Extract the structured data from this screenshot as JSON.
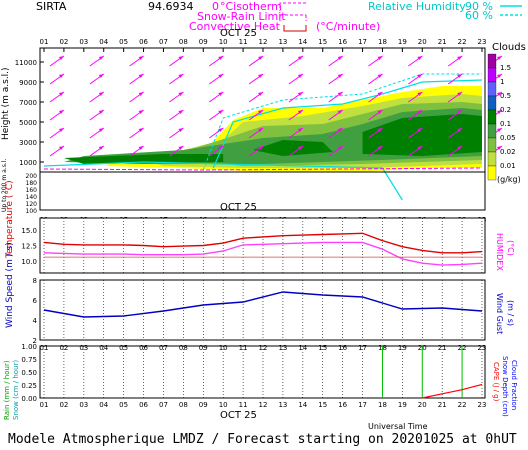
{
  "header": {
    "station": "SIRTA",
    "station_code": "94.6934",
    "legend_isotherm_prefix": "0",
    "legend_isotherm": "°Cisotherm",
    "legend_snow": "Snow-Rain Limit",
    "legend_conv": "Convective Heat",
    "legend_conv_units": "(°C/minute)",
    "legend_rh_label": "Relative Humidity",
    "legend_rh_90": "90 %",
    "legend_rh_60": "60 %",
    "colors": {
      "isotherm": "#ff00ff",
      "snow": "#ff00ff",
      "conv": "#e60000",
      "rh": "#00e0e0"
    }
  },
  "footer": {
    "text": "Modele Atmospherique LMDZ / Forecast starting on 20201025 at 0hUT",
    "universal_time": "Universal Time"
  },
  "hours_top": [
    "01",
    "02",
    "03",
    "04",
    "05",
    "06",
    "07",
    "08",
    "09",
    "10",
    "11",
    "12",
    "13",
    "14",
    "15",
    "16",
    "17",
    "18",
    "19",
    "20",
    "21",
    "22",
    "23"
  ],
  "hours_mid": [
    "01",
    "02",
    "03",
    "04",
    "05",
    "06",
    "07",
    "08",
    "09",
    "10",
    "11",
    "12",
    "13",
    "14",
    "15",
    "16",
    "17",
    "18",
    "19",
    "20",
    "21",
    "22",
    "23"
  ],
  "date_label": "OCT 25",
  "clouds": {
    "title": "Clouds",
    "units": "(g/kg)",
    "levels": [
      "1.5",
      "1",
      "0.5",
      "0.2",
      "0.1",
      "0.05",
      "0.02",
      "0.01"
    ],
    "colors": [
      "#a000a0",
      "#c000ff",
      "#6060ff",
      "#1060c0",
      "#008000",
      "#40a040",
      "#80c040",
      "#c0e040",
      "#ffff00"
    ],
    "ylabel": "Height (m a.s.l.)",
    "yticks_km": [
      "11000",
      "9000",
      "7000",
      "5000",
      "3000",
      "1000"
    ],
    "yticks_low": [
      "200",
      "180",
      "160",
      "140",
      "120",
      "100"
    ],
    "low_label": "Up to 200 m a.s.l.",
    "iso_color": "#00e0e0"
  },
  "chart_data": [
    {
      "type": "line",
      "title": "Temperature / Humidex",
      "ylabel": "Temperature (°C)",
      "ylabel2": "HUMIDEX",
      "ylabel2_units": "(°C)",
      "ylim": [
        8,
        17
      ],
      "yticks": [
        "15.0",
        "12.5",
        "10.0"
      ],
      "x": [
        1,
        2,
        3,
        4,
        5,
        6,
        7,
        8,
        9,
        10,
        11,
        12,
        13,
        14,
        15,
        16,
        17,
        18,
        19,
        20,
        21,
        22,
        23
      ],
      "series": [
        {
          "name": "Temperature",
          "color": "#e00000",
          "values": [
            13.0,
            12.7,
            12.6,
            12.6,
            12.6,
            12.5,
            12.3,
            12.4,
            12.5,
            12.9,
            13.7,
            13.9,
            14.1,
            14.2,
            14.3,
            14.4,
            14.5,
            13.3,
            12.3,
            11.7,
            11.3,
            11.3,
            11.5
          ]
        },
        {
          "name": "Humidex",
          "color": "#ff40ff",
          "values": [
            11.3,
            11.2,
            11.1,
            11.1,
            11.1,
            11.0,
            11.0,
            11.0,
            11.1,
            11.6,
            12.6,
            12.7,
            12.8,
            12.9,
            13.0,
            13.0,
            13.0,
            11.9,
            10.3,
            9.6,
            9.3,
            9.4,
            9.6
          ]
        }
      ]
    },
    {
      "type": "line",
      "title": "Wind Speed",
      "ylabel": "Wind Speed (m / s)",
      "ylabel2": "Wind Gust",
      "ylabel2_units": "(m / s)",
      "ylim": [
        2,
        8
      ],
      "yticks": [
        "8",
        "6",
        "4",
        "2"
      ],
      "x": [
        1,
        3,
        5,
        7,
        9,
        11,
        13,
        15,
        17,
        19,
        21,
        23
      ],
      "series": [
        {
          "name": "Wind Speed",
          "color": "#0000c0",
          "values": [
            5.0,
            4.3,
            4.4,
            4.9,
            5.5,
            5.8,
            6.8,
            6.5,
            6.3,
            5.1,
            5.2,
            4.9
          ]
        }
      ]
    },
    {
      "type": "bar",
      "title": "Rain / Snow",
      "ylabel": "Rain (mm / hour)",
      "ylabel_snow": "Snow (cm / hour)",
      "ylabel2": "CAPE (J / g)",
      "ylabel2_b": "Snow Depth (cm)",
      "ylabel2_c": "Cloud Fraction",
      "ylim": [
        0,
        1
      ],
      "yticks": [
        "1.00",
        "0.75",
        "0.50",
        "0.25",
        "0.00"
      ],
      "x": [
        1,
        2,
        3,
        4,
        5,
        6,
        7,
        8,
        9,
        10,
        11,
        12,
        13,
        14,
        15,
        16,
        17,
        18,
        19,
        20,
        21,
        22,
        23
      ],
      "rain_marks": [
        18,
        20,
        22
      ],
      "cape_series": {
        "name": "CAPE",
        "color": "#ff0000",
        "x": [
          20,
          21,
          22,
          23
        ],
        "values": [
          0.0,
          0.08,
          0.16,
          0.26
        ]
      }
    }
  ]
}
